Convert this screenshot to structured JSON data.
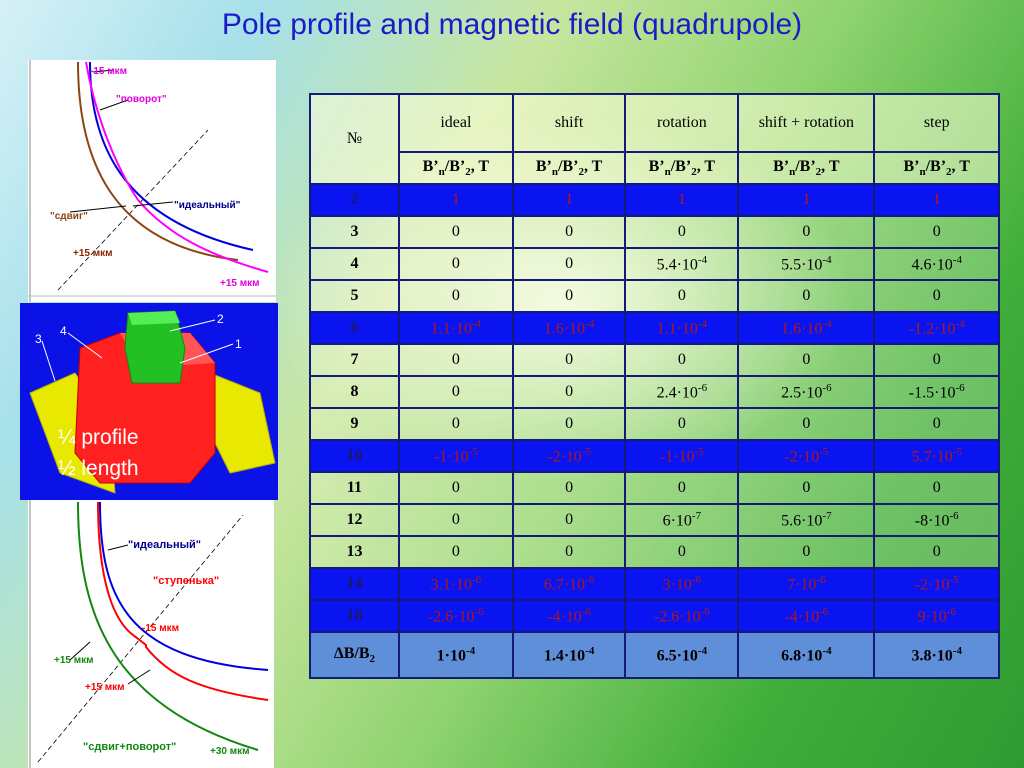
{
  "title": "Pole profile and magnetic field (quadrupole)",
  "top_plot": {
    "minus15": "-15 мкм",
    "rotation": "\"поворот\"",
    "ideal": "\"идеальный\"",
    "shift": "\"сдвиг\"",
    "plus15a": "+15 мкм",
    "plus15b": "+15 мкм"
  },
  "model": {
    "n1": "1",
    "n2": "2",
    "n3": "3",
    "n4": "4",
    "caption1": "¼ profile",
    "caption2": "½ length"
  },
  "bottom_plot": {
    "ideal": "\"идеальный\"",
    "step": "\"ступенька\"",
    "minus15": "-15 мкм",
    "plus15a": "+15 мкм",
    "plus15b": "+15 мкм",
    "shiftrot": "\"сдвиг+поворот\"",
    "plus30": "+30 мкм"
  },
  "colors": {
    "highlight_row": "#0a14f0",
    "total_row": "#5f8fd8",
    "title": "#1b1bc8"
  },
  "table": {
    "num_header": "№",
    "columns": [
      "ideal",
      "shift",
      "rotation",
      "shift + rotation",
      "step"
    ],
    "unit_parts": [
      "B’",
      "n",
      "/B’",
      "2",
      ", T"
    ],
    "rows": [
      {
        "n": "2",
        "hl": true,
        "v": [
          [
            "1",
            ""
          ],
          [
            "1",
            ""
          ],
          [
            "1",
            ""
          ],
          [
            "1",
            ""
          ],
          [
            "1",
            ""
          ]
        ]
      },
      {
        "n": "3",
        "hl": false,
        "v": [
          [
            "0",
            ""
          ],
          [
            "0",
            ""
          ],
          [
            "0",
            ""
          ],
          [
            "0",
            ""
          ],
          [
            "0",
            ""
          ]
        ]
      },
      {
        "n": "4",
        "hl": false,
        "v": [
          [
            "0",
            ""
          ],
          [
            "0",
            ""
          ],
          [
            "5.4·10",
            "-4"
          ],
          [
            "5.5·10",
            "-4"
          ],
          [
            "4.6·10",
            "-4"
          ]
        ]
      },
      {
        "n": "5",
        "hl": false,
        "v": [
          [
            "0",
            ""
          ],
          [
            "0",
            ""
          ],
          [
            "0",
            ""
          ],
          [
            "0",
            ""
          ],
          [
            "0",
            ""
          ]
        ]
      },
      {
        "n": "6",
        "hl": true,
        "v": [
          [
            "1.1·10",
            "-4"
          ],
          [
            "1.6·10",
            "-4"
          ],
          [
            "1.1·10",
            "-4"
          ],
          [
            "1.6·10",
            "-4"
          ],
          [
            "-1.2·10",
            "-4"
          ]
        ]
      },
      {
        "n": "7",
        "hl": false,
        "v": [
          [
            "0",
            ""
          ],
          [
            "0",
            ""
          ],
          [
            "0",
            ""
          ],
          [
            "0",
            ""
          ],
          [
            "0",
            ""
          ]
        ]
      },
      {
        "n": "8",
        "hl": false,
        "v": [
          [
            "0",
            ""
          ],
          [
            "0",
            ""
          ],
          [
            "2.4·10",
            "-6"
          ],
          [
            "2.5·10",
            "-6"
          ],
          [
            "-1.5·10",
            "-6"
          ]
        ]
      },
      {
        "n": "9",
        "hl": false,
        "v": [
          [
            "0",
            ""
          ],
          [
            "0",
            ""
          ],
          [
            "0",
            ""
          ],
          [
            "0",
            ""
          ],
          [
            "0",
            ""
          ]
        ]
      },
      {
        "n": "10",
        "hl": true,
        "v": [
          [
            "-1·10",
            "-5"
          ],
          [
            "-2·10",
            "-5"
          ],
          [
            "-1·10",
            "-5"
          ],
          [
            "-2·10",
            "-5"
          ],
          [
            "5.7·10",
            "-5"
          ]
        ]
      },
      {
        "n": "11",
        "hl": false,
        "v": [
          [
            "0",
            ""
          ],
          [
            "0",
            ""
          ],
          [
            "0",
            ""
          ],
          [
            "0",
            ""
          ],
          [
            "0",
            ""
          ]
        ]
      },
      {
        "n": "12",
        "hl": false,
        "v": [
          [
            "0",
            ""
          ],
          [
            "0",
            ""
          ],
          [
            "6·10",
            "-7"
          ],
          [
            "5.6·10",
            "-7"
          ],
          [
            "-8·10",
            "-6"
          ]
        ]
      },
      {
        "n": "13",
        "hl": false,
        "v": [
          [
            "0",
            ""
          ],
          [
            "0",
            ""
          ],
          [
            "0",
            ""
          ],
          [
            "0",
            ""
          ],
          [
            "0",
            ""
          ]
        ]
      },
      {
        "n": "14",
        "hl": true,
        "v": [
          [
            "3.1·10",
            "-6"
          ],
          [
            "6.7·10",
            "-6"
          ],
          [
            "3·10",
            "-6"
          ],
          [
            "7·10",
            "-6"
          ],
          [
            "-2·10",
            "-5"
          ]
        ]
      },
      {
        "n": "18",
        "hl": true,
        "v": [
          [
            "-2.6·10",
            "-6"
          ],
          [
            "-4·10",
            "-6"
          ],
          [
            "-2.6·10",
            "-6"
          ],
          [
            "-4·10",
            "-6"
          ],
          [
            "9·10",
            "-6"
          ]
        ]
      }
    ],
    "total": {
      "label_parts": [
        "∆B/B",
        "2"
      ],
      "v": [
        [
          "1·10",
          "-4"
        ],
        [
          "1.4·10",
          "-4"
        ],
        [
          "6.5·10",
          "-4"
        ],
        [
          "6.8·10",
          "-4"
        ],
        [
          "3.8·10",
          "-4"
        ]
      ]
    }
  }
}
